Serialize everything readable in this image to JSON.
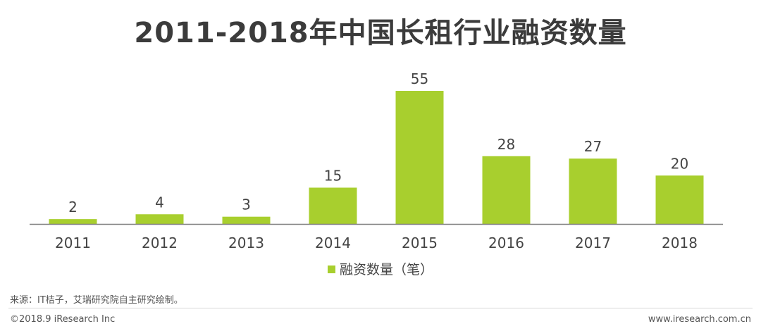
{
  "chart_data": {
    "type": "bar",
    "title": "2011-2018年中国长租行业融资数量",
    "categories": [
      "2011",
      "2012",
      "2013",
      "2014",
      "2015",
      "2016",
      "2017",
      "2018"
    ],
    "series": [
      {
        "name": "融资数量（笔）",
        "values": [
          2,
          4,
          3,
          15,
          55,
          28,
          27,
          20
        ]
      }
    ],
    "ylim": [
      0,
      55
    ],
    "grid": false,
    "legend_position": "bottom",
    "bar_color": "#a8cf2e"
  },
  "footer": {
    "source": "来源：IT桔子，艾瑞研究院自主研究绘制。",
    "copyright": "©2018.9 iResearch Inc",
    "website": "www.iresearch.com.cn"
  }
}
